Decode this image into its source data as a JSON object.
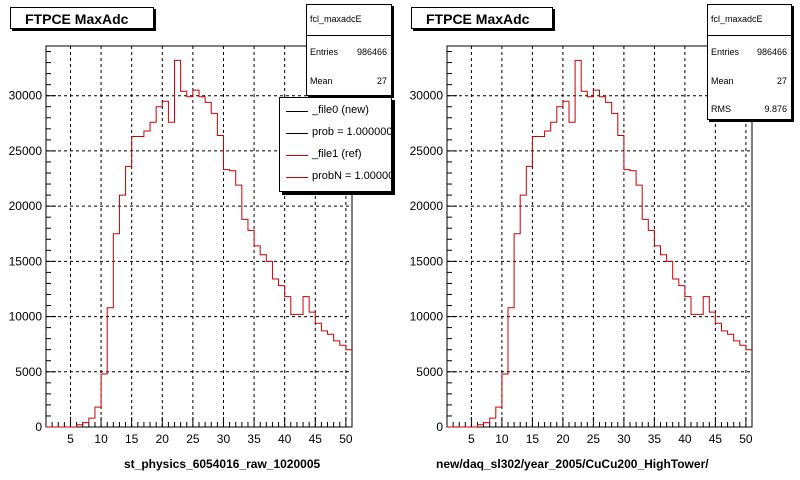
{
  "chart_data": [
    {
      "type": "line",
      "title": "FTPCE MaxAdc",
      "xlabel": "st_physics_6054016_raw_1020005",
      "ylabel": "",
      "xlim": [
        1,
        51
      ],
      "ylim": [
        0,
        34500
      ],
      "xticks": [
        "5",
        "10",
        "15",
        "20",
        "25",
        "30",
        "35",
        "40",
        "45",
        "50"
      ],
      "yticks": [
        "0",
        "5000",
        "10000",
        "15000",
        "20000",
        "25000",
        "30000"
      ],
      "grid": true,
      "stats": {
        "name": "fcl_maxadcE",
        "rows": [
          {
            "label": "Entries",
            "value": "986466"
          },
          {
            "label": "Mean",
            "value": "27"
          }
        ]
      },
      "legend": {
        "placement": "top-right",
        "entries": [
          {
            "label": "_file0 (new)",
            "color": "#000000"
          },
          {
            "label": "prob = 1.000000",
            "color": "#000000"
          },
          {
            "label": "_file1 (ref)",
            "color": "#cc0000"
          },
          {
            "label": "probN = 1.000000",
            "color": "#cc0000"
          }
        ]
      },
      "series": [
        {
          "color": "#cc0000",
          "bin_edges_start": 1,
          "bin_width": 1,
          "values": [
            0,
            0,
            0,
            0,
            0,
            200,
            400,
            800,
            1800,
            4800,
            10800,
            17500,
            21000,
            23600,
            26300,
            26300,
            26800,
            27600,
            29000,
            29500,
            27600,
            33200,
            30400,
            29900,
            30500,
            29900,
            29400,
            28400,
            26400,
            23300,
            23200,
            21900,
            18800,
            17800,
            16400,
            15600,
            15000,
            13400,
            12800,
            11800,
            10200,
            10200,
            11800,
            10400,
            9400,
            8700,
            8400,
            7800,
            7400,
            7000
          ]
        }
      ]
    },
    {
      "type": "line",
      "title": "FTPCE MaxAdc",
      "xlabel": "new/daq_sl302/year_2005/CuCu200_HighTower/",
      "ylabel": "",
      "xlim": [
        1,
        51
      ],
      "ylim": [
        0,
        34500
      ],
      "xticks": [
        "5",
        "10",
        "15",
        "20",
        "25",
        "30",
        "35",
        "40",
        "45",
        "50"
      ],
      "yticks": [
        "0",
        "5000",
        "10000",
        "15000",
        "20000",
        "25000",
        "30000"
      ],
      "grid": true,
      "stats": {
        "name": "fcl_maxadcE",
        "rows": [
          {
            "label": "Entries",
            "value": "986466"
          },
          {
            "label": "Mean",
            "value": "27"
          },
          {
            "label": "RMS",
            "value": "9.876"
          }
        ]
      },
      "series": [
        {
          "color": "#cc0000",
          "bin_edges_start": 1,
          "bin_width": 1,
          "values": [
            0,
            0,
            0,
            0,
            0,
            200,
            400,
            800,
            1800,
            4800,
            10800,
            17500,
            21000,
            23600,
            26300,
            26300,
            26800,
            27600,
            29000,
            29500,
            27600,
            33200,
            30400,
            29900,
            30500,
            29900,
            29400,
            28400,
            26400,
            23300,
            23200,
            21900,
            18800,
            17800,
            16400,
            15600,
            15000,
            13400,
            12800,
            11800,
            10200,
            10200,
            11800,
            10400,
            9400,
            8700,
            8400,
            7800,
            7400,
            7000
          ]
        }
      ]
    }
  ]
}
